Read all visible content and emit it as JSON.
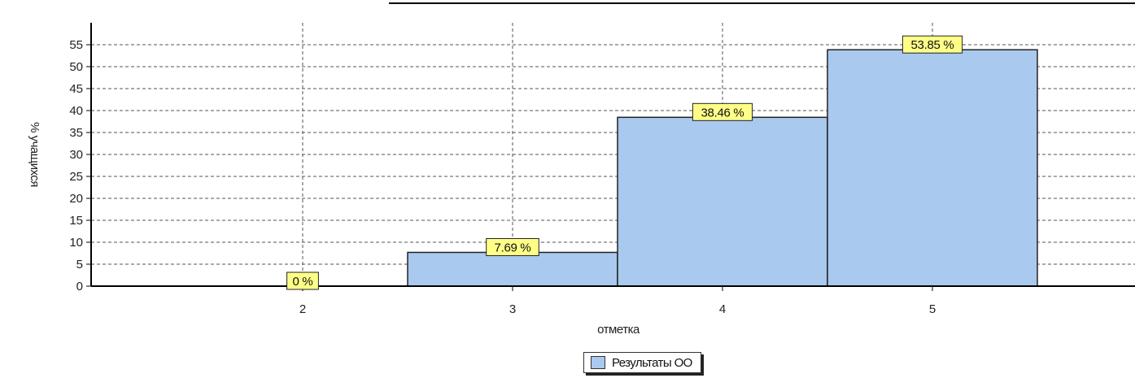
{
  "chart_data": {
    "type": "bar",
    "categories": [
      "2",
      "3",
      "4",
      "5"
    ],
    "series": [
      {
        "name": "Результаты ОО",
        "values": [
          0,
          7.69,
          38.46,
          53.85
        ],
        "color": "#a9c9ee"
      }
    ],
    "data_labels": [
      "0 %",
      "7.69 %",
      "38.46 %",
      "53.85 %"
    ],
    "xlabel": "отметка",
    "ylabel": "% учащихся",
    "ylim": [
      0,
      55
    ],
    "yticks": [
      0,
      5,
      10,
      15,
      20,
      25,
      30,
      35,
      40,
      45,
      50,
      55
    ],
    "grid": true,
    "legend_position": "bottom-center",
    "label_bg_color": "#ffff88"
  }
}
